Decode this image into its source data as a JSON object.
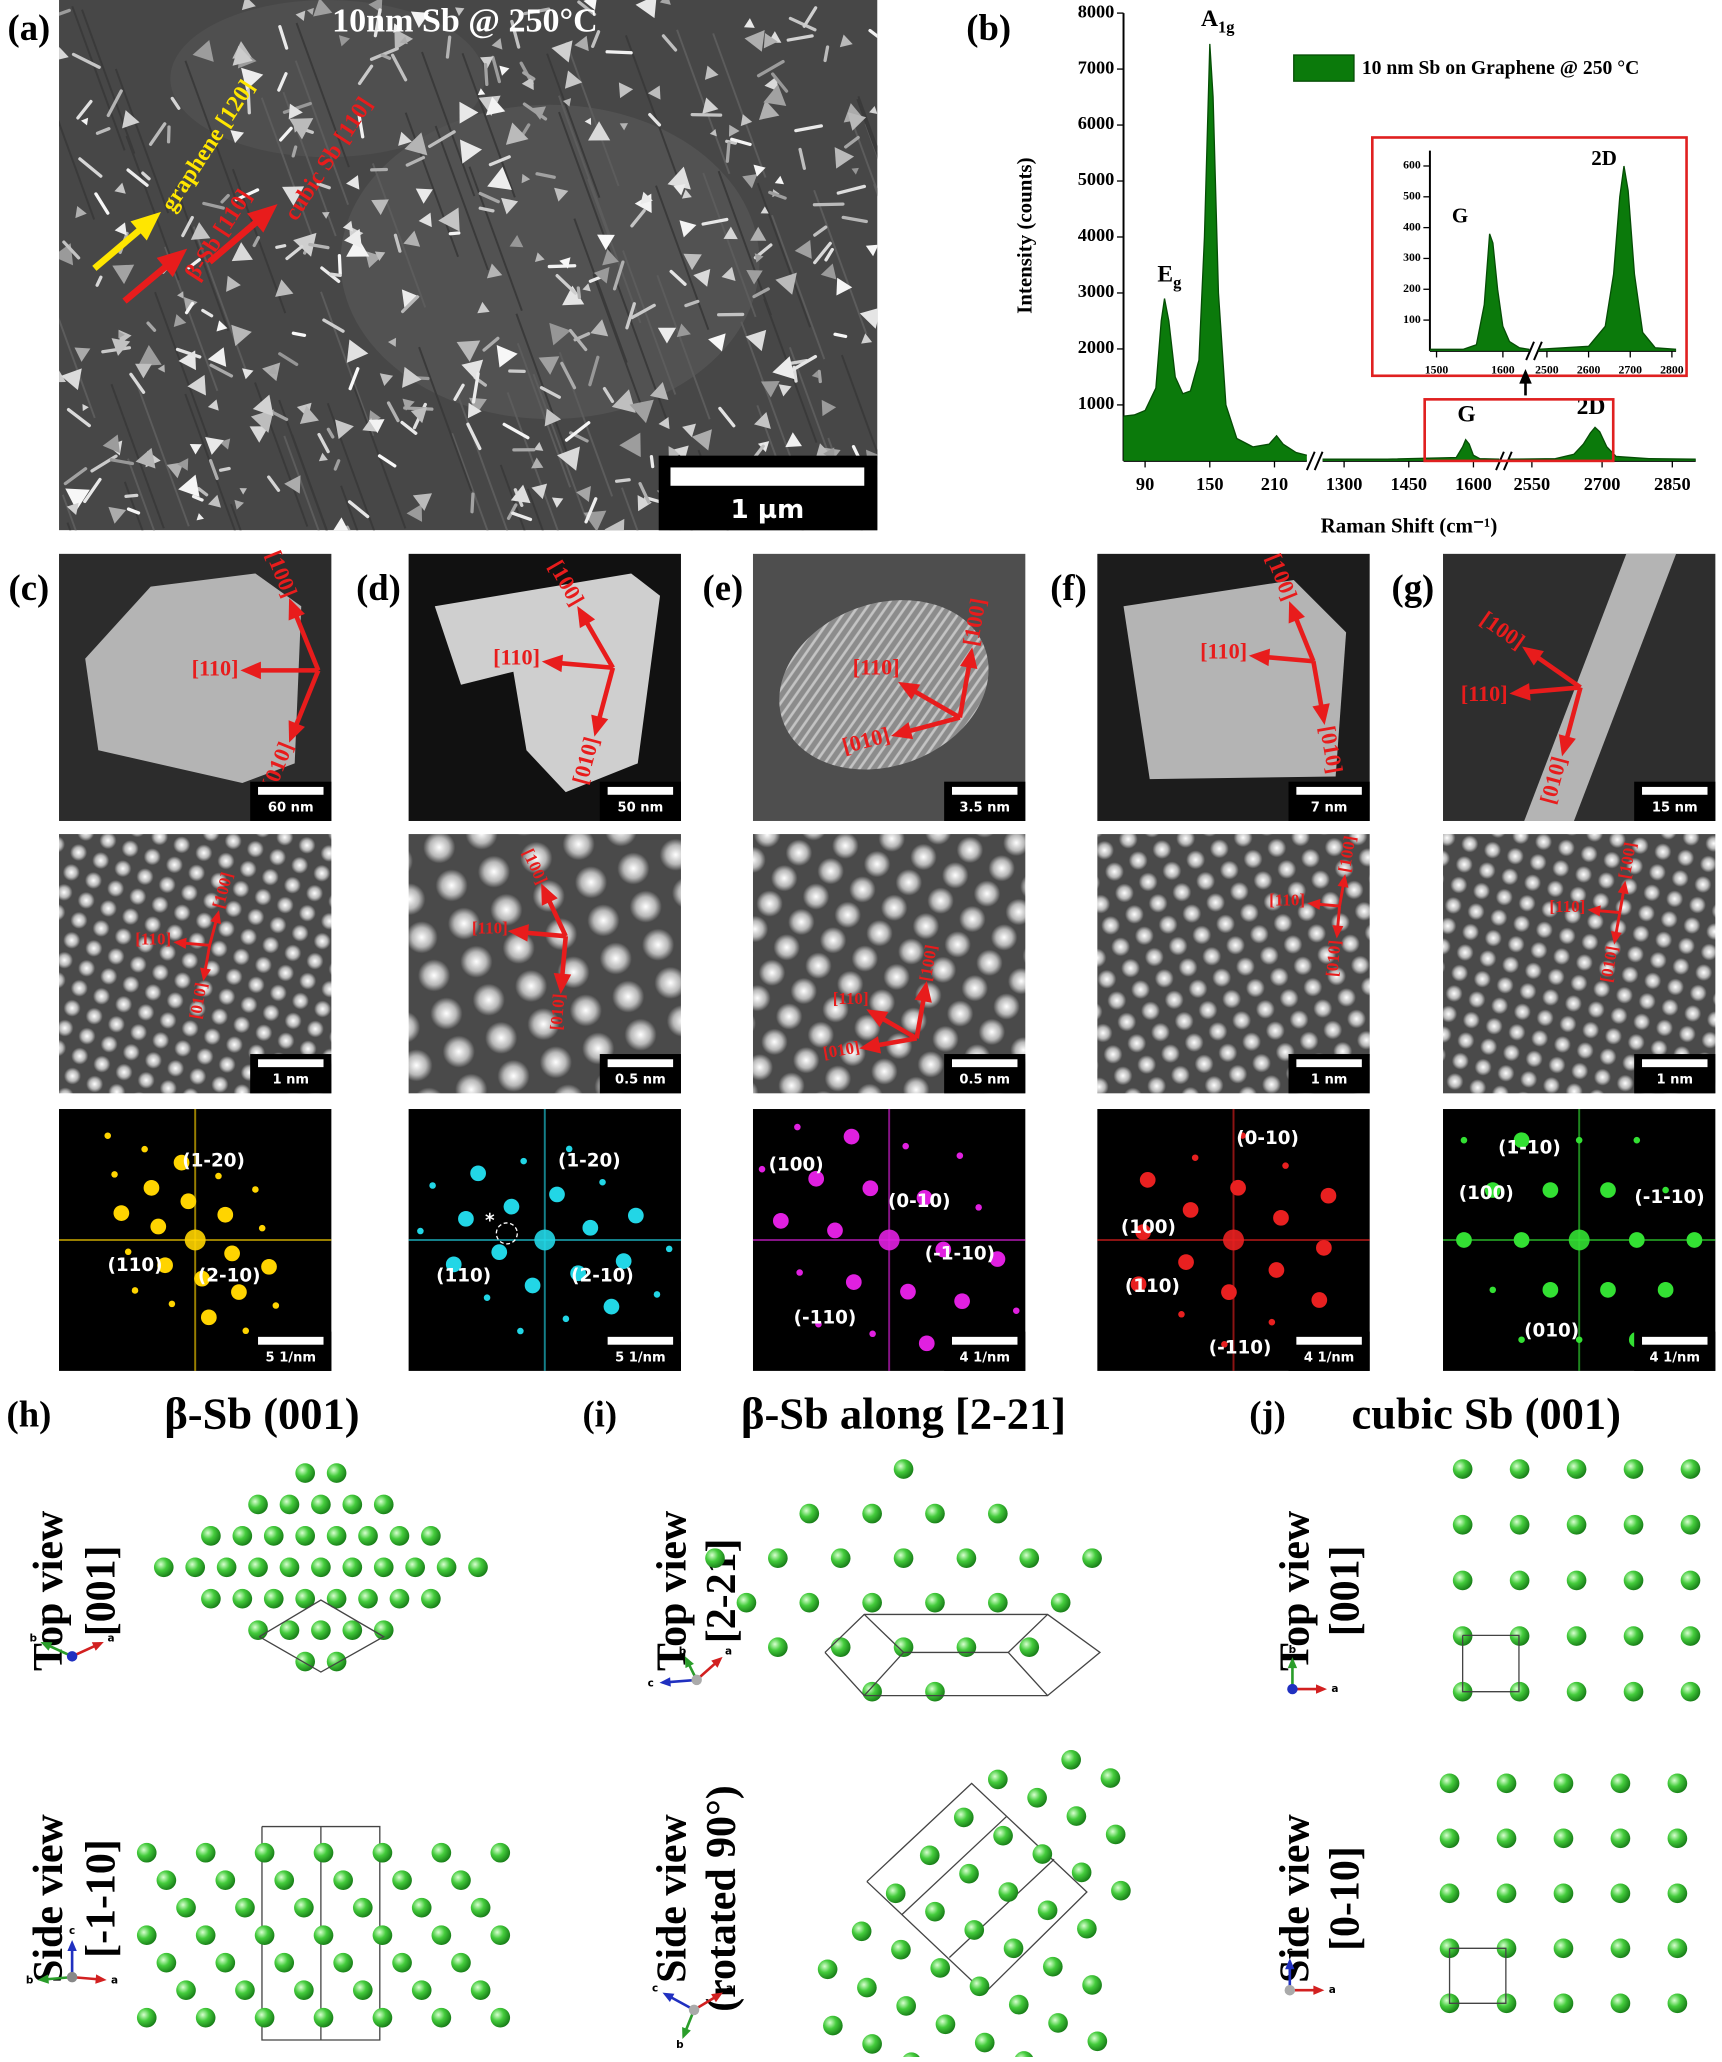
{
  "panels": {
    "a": {
      "label": "(a)",
      "title": "10nm Sb @ 250°C",
      "annotations": [
        "graphene [120]",
        "β-Sb [110]",
        "cubic Sb [110]"
      ],
      "scale_bar": "1 µm"
    },
    "c": {
      "label": "(c)",
      "images": [
        {
          "scale_bar": "60 nm",
          "directions": [
            "[100]",
            "[110]",
            "[010]"
          ]
        },
        {
          "scale_bar": "1 nm",
          "directions": [
            "[100]",
            "[110]",
            "[010]"
          ]
        },
        {
          "scale_bar": "5 1/nm",
          "spots": [
            "(1-20)",
            "(110)",
            "(2-10)"
          ]
        }
      ]
    },
    "d": {
      "label": "(d)",
      "images": [
        {
          "scale_bar": "50 nm",
          "directions": [
            "[100]",
            "[110]",
            "[010]"
          ]
        },
        {
          "scale_bar": "0.5 nm",
          "directions": [
            "[100]",
            "[110]",
            "[010]"
          ]
        },
        {
          "scale_bar": "5 1/nm",
          "spots": [
            "(1-20)",
            "*",
            "(110)",
            "(2-10)"
          ]
        }
      ]
    },
    "e": {
      "label": "(e)",
      "images": [
        {
          "scale_bar": "3.5 nm",
          "directions": [
            "[100]",
            "[110]",
            "[010]"
          ]
        },
        {
          "scale_bar": "0.5 nm",
          "directions": [
            "[100]",
            "[110]",
            "[010]"
          ]
        },
        {
          "scale_bar": "4 1/nm",
          "spots": [
            "(100)",
            "(0-10)",
            "(-1-10)",
            "(-110)"
          ]
        }
      ]
    },
    "f": {
      "label": "(f)",
      "images": [
        {
          "scale_bar": "7 nm",
          "directions": [
            "[100]",
            "[110]",
            "[010]"
          ]
        },
        {
          "scale_bar": "1 nm",
          "directions": [
            "[100]",
            "[110]",
            "[010]"
          ]
        },
        {
          "scale_bar": "4 1/nm",
          "spots": [
            "(0-10)",
            "(100)",
            "(110)",
            "(-110)"
          ]
        }
      ]
    },
    "g": {
      "label": "(g)",
      "images": [
        {
          "scale_bar": "15 nm",
          "directions": [
            "[100]",
            "[110]",
            "[010]"
          ]
        },
        {
          "scale_bar": "1 nm",
          "directions": [
            "[100]",
            "[110]",
            "[010]"
          ]
        },
        {
          "scale_bar": "4 1/nm",
          "spots": [
            "(1-10)",
            "(100)",
            "(-1-10)",
            "(010)"
          ]
        }
      ]
    }
  },
  "structures": {
    "h": {
      "label": "(h)",
      "title": "β-Sb (001)",
      "views": [
        {
          "name": "Top view",
          "direction": "[001]",
          "axes": [
            "b",
            "a"
          ]
        },
        {
          "name": "Side view",
          "direction": "[-1-10]",
          "axes": [
            "c",
            "b",
            "a"
          ]
        }
      ]
    },
    "i": {
      "label": "(i)",
      "title": "β-Sb along [2-21]",
      "views": [
        {
          "name": "Top view",
          "direction": "[2-21]",
          "axes": [
            "b",
            "a",
            "c"
          ]
        },
        {
          "name": "Side view",
          "direction": "(rotated 90°)",
          "axes": [
            "c",
            "a",
            "b"
          ]
        }
      ]
    },
    "j": {
      "label": "(j)",
      "title": "cubic Sb (001)",
      "views": [
        {
          "name": "Top view",
          "direction": "[001]",
          "axes": [
            "b",
            "a"
          ]
        },
        {
          "name": "Side view",
          "direction": "[0-10]",
          "axes": [
            "c",
            "a"
          ]
        }
      ]
    }
  },
  "chart_data": [
    {
      "type": "area",
      "panel_label": "(b)",
      "xlabel": "Raman Shift (cm⁻¹)",
      "ylabel": "Intensity (counts)",
      "legend": "upper right",
      "x": [
        70,
        80,
        90,
        100,
        105,
        108,
        112,
        118,
        125,
        132,
        140,
        145,
        150,
        153,
        158,
        165,
        175,
        190,
        205,
        212,
        218,
        230,
        240,
        null,
        1250,
        1400,
        1560,
        1575,
        1582,
        1590,
        1600,
        1615,
        1660,
        null,
        2500,
        2600,
        2640,
        2660,
        2675,
        2685,
        2695,
        2710,
        2730,
        2800,
        2900
      ],
      "series": [
        {
          "name": "10 nm Sb on Graphene @ 250 °C",
          "color": "#0b7a0b",
          "values": [
            800,
            820,
            900,
            1300,
            2500,
            2900,
            2500,
            1500,
            1200,
            1250,
            1800,
            4000,
            7450,
            6500,
            3000,
            1000,
            400,
            250,
            300,
            450,
            300,
            150,
            100,
            null,
            30,
            30,
            60,
            250,
            380,
            300,
            100,
            40,
            30,
            null,
            30,
            40,
            120,
            300,
            500,
            600,
            520,
            250,
            80,
            40,
            30
          ]
        }
      ],
      "x_segments": [
        {
          "xlim": [
            70,
            240
          ],
          "xticks": [
            90,
            150,
            210
          ]
        },
        {
          "xlim": [
            1250,
            1660
          ],
          "xticks": [
            1300,
            1450,
            1600
          ]
        },
        {
          "xlim": [
            2500,
            2900
          ],
          "xticks": [
            2550,
            2700,
            2850
          ]
        }
      ],
      "ylim": [
        0,
        8000
      ],
      "yticks": [
        1000,
        2000,
        3000,
        4000,
        5000,
        6000,
        7000,
        8000
      ],
      "annotations": [
        {
          "text": "E",
          "sub": "g"
        },
        {
          "text": "A",
          "sub": "1g"
        },
        {
          "text": "G"
        },
        {
          "text": "2D"
        }
      ]
    },
    {
      "type": "area",
      "border_color": "#e02020",
      "x": [
        1490,
        1540,
        1560,
        1572,
        1580,
        1585,
        1592,
        1600,
        1610,
        1625,
        1640,
        null,
        2480,
        2600,
        2640,
        2660,
        2675,
        2685,
        2695,
        2710,
        2730,
        2760,
        2810
      ],
      "series": [
        {
          "color": "#0b7a0b",
          "values": [
            5,
            5,
            20,
            150,
            380,
            350,
            200,
            80,
            30,
            10,
            5,
            null,
            5,
            15,
            80,
            250,
            500,
            600,
            520,
            250,
            60,
            10,
            5
          ]
        }
      ],
      "x_segments": [
        {
          "xlim": [
            1490,
            1640
          ],
          "xticks": [
            1500,
            1600
          ]
        },
        {
          "xlim": [
            2480,
            2810
          ],
          "xticks": [
            2500,
            2600,
            2700,
            2800
          ]
        }
      ],
      "ylim": [
        0,
        650
      ],
      "yticks": [
        100,
        200,
        300,
        400,
        500,
        600
      ],
      "annotations": [
        {
          "text": "G"
        },
        {
          "text": "2D"
        }
      ]
    }
  ]
}
